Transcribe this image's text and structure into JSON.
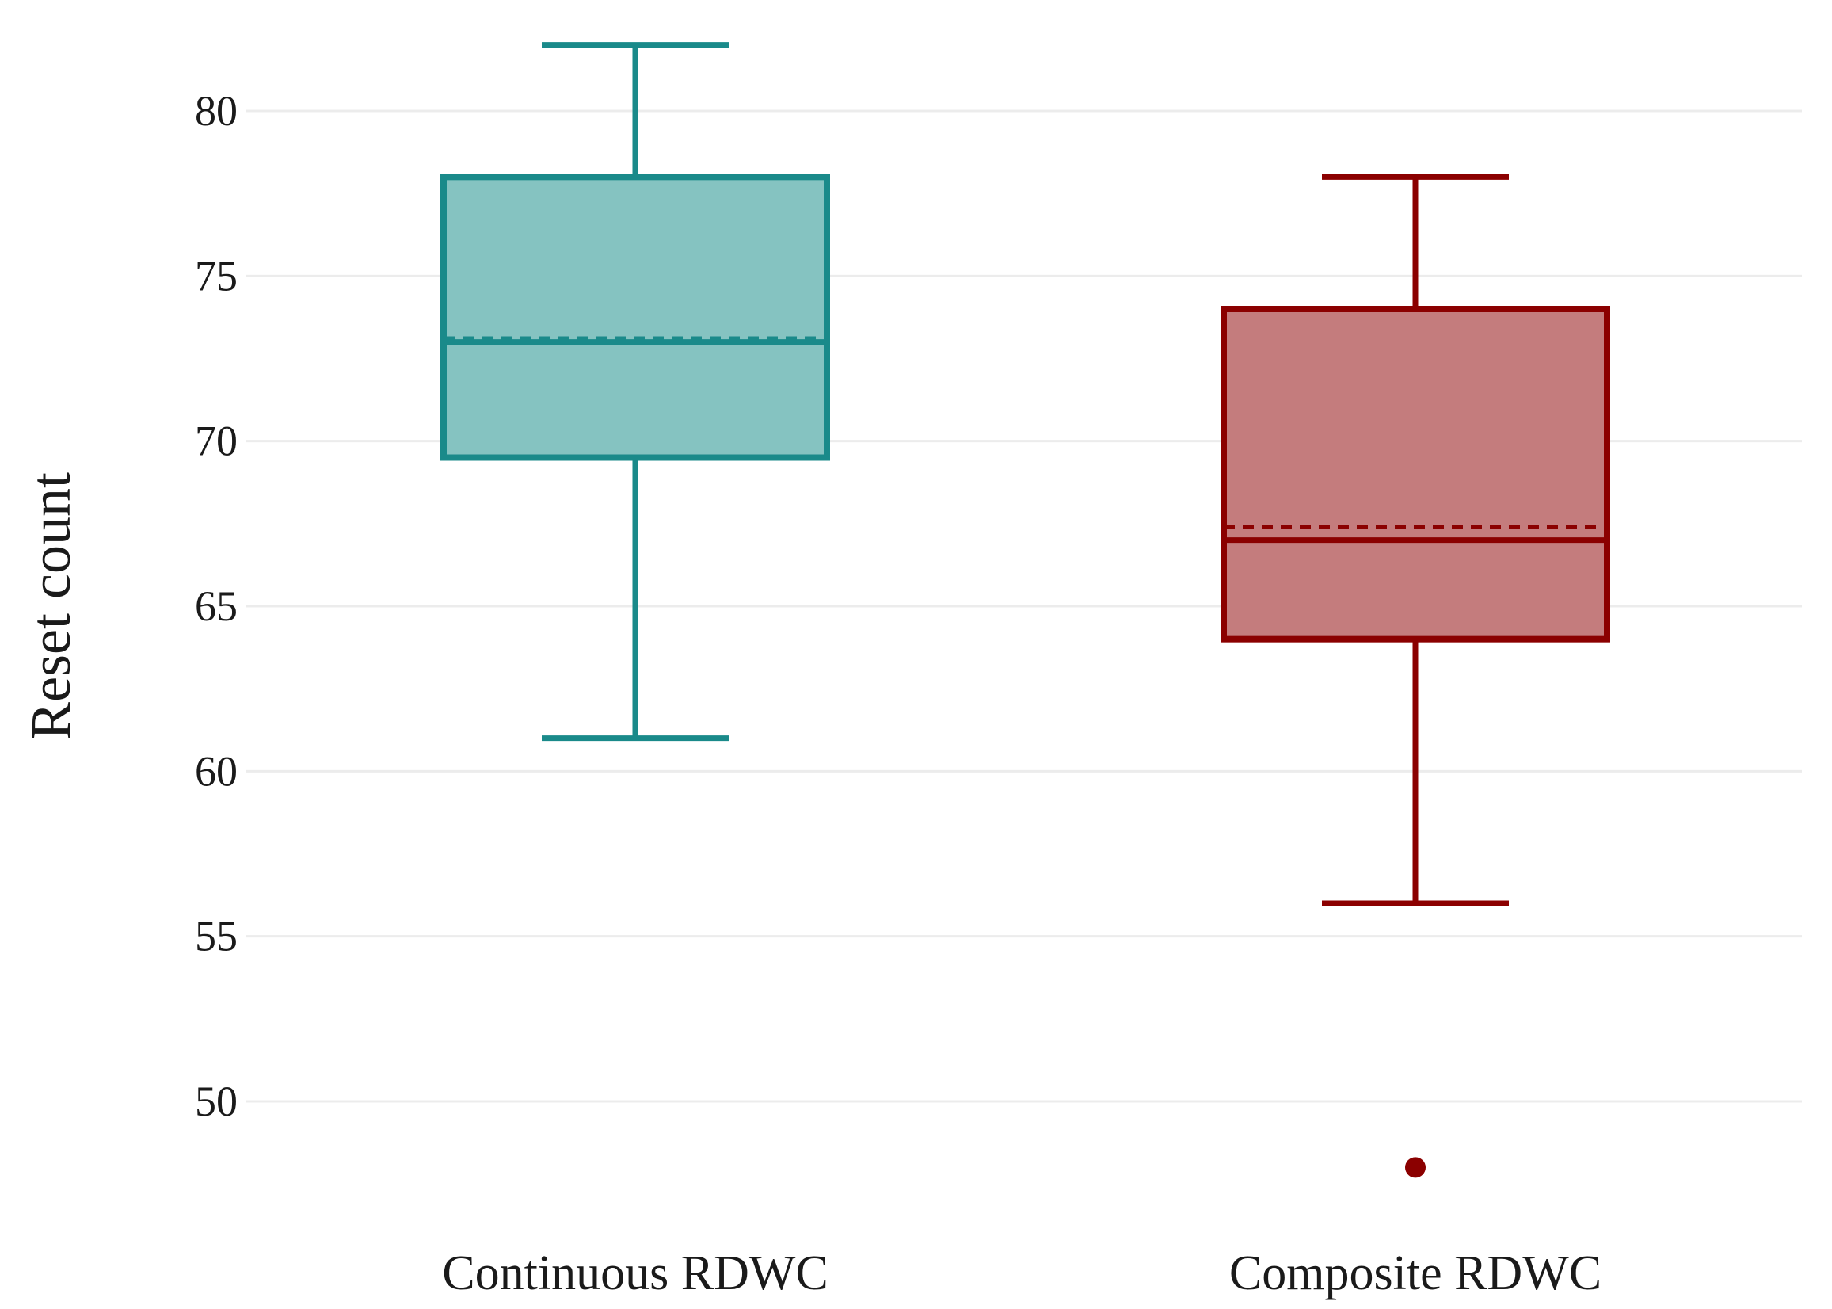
{
  "chart_data": {
    "type": "box",
    "ylabel": "Reset count",
    "xlabel": "",
    "ylim": [
      46,
      83
    ],
    "yticks": [
      50,
      55,
      60,
      65,
      70,
      75,
      80
    ],
    "grid": true,
    "categories": [
      "Continuous RDWC",
      "Composite RDWC"
    ],
    "series": [
      {
        "category": "Continuous RDWC",
        "color": "#1a8a8a",
        "fill": "#85c3c1",
        "whisker_low": 61,
        "q1": 69.5,
        "median": 73,
        "mean": 73.1,
        "q3": 78,
        "whisker_high": 82,
        "outliers": []
      },
      {
        "category": "Composite RDWC",
        "color": "#8b0000",
        "fill": "#c47c7d",
        "whisker_low": 56,
        "q1": 64,
        "median": 67,
        "mean": 67.4,
        "q3": 74,
        "whisker_high": 78,
        "outliers": [
          48
        ]
      }
    ]
  }
}
